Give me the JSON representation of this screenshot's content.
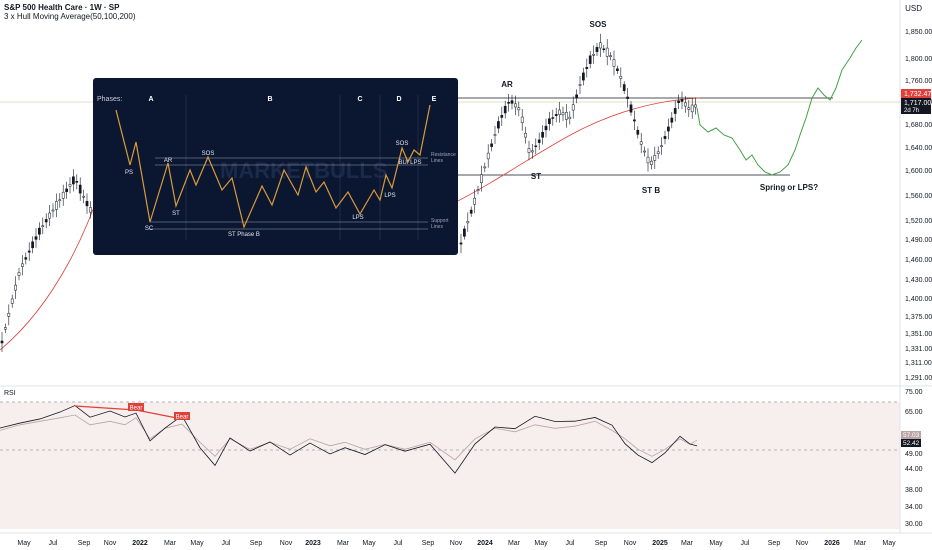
{
  "header": {
    "title": "S&P 500 Health Care · 1W · SP",
    "indicator": "3 x Hull Moving Average(50,100,200)",
    "currency": "USD"
  },
  "price_axis": {
    "ticks": [
      "1,850.00",
      "1,800.00",
      "1,760.00",
      "1,720.00",
      "1,680.00",
      "1,640.00",
      "1,600.00",
      "1,560.00",
      "1,520.00",
      "1,490.00",
      "1,460.00",
      "1,430.00",
      "1,400.00",
      "1,375.00",
      "1,351.00",
      "1,331.00",
      "1,311.00",
      "1,291.00"
    ],
    "current_price": "1,717.00",
    "countdown": "2d 7h",
    "red_tag": "1,732.47"
  },
  "rsi_axis": {
    "label": "RSI",
    "ticks": [
      "75.00",
      "65.00",
      "49.00",
      "44.00",
      "38.00",
      "34.00",
      "30.00"
    ],
    "value_tags": [
      "57.03",
      "52.42"
    ],
    "bear_labels": [
      "Bear",
      "Bear"
    ]
  },
  "time_axis": {
    "ticks": [
      "May",
      "Jul",
      "Sep",
      "Nov",
      "2022",
      "Mar",
      "May",
      "Jul",
      "Sep",
      "Nov",
      "2023",
      "Mar",
      "May",
      "Jul",
      "Sep",
      "Nov",
      "2024",
      "Mar",
      "May",
      "Jul",
      "Sep",
      "Nov",
      "2025",
      "Mar",
      "May",
      "Jul",
      "Sep",
      "Nov",
      "2026",
      "Mar",
      "May"
    ],
    "bold": [
      "2022",
      "2023",
      "2024",
      "2025",
      "2026"
    ]
  },
  "annotations": {
    "ar": "AR",
    "sos": "SOS",
    "st": "ST",
    "st_b": "ST B",
    "spring": "Spring or LPS?"
  },
  "inset": {
    "phases_label": "Phases:",
    "phases": [
      "A",
      "B",
      "C",
      "D",
      "E"
    ],
    "watermark": "MARKETBULLS",
    "points": [
      "PS",
      "SC",
      "AR",
      "ST",
      "SOS",
      "ST Phase B",
      "LPS",
      "LPS",
      "SOS",
      "BU/ LPS"
    ],
    "resistance": "Resistance Lines",
    "support": "Support Lines"
  },
  "colors": {
    "candle": "#131722",
    "hma": "#e0403a",
    "projection": "#43a047",
    "rsi": "#131722",
    "rsi_ma": "#b8a4a4",
    "inset_bg": "#0b1731",
    "inset_line": "#d99a3b"
  }
}
